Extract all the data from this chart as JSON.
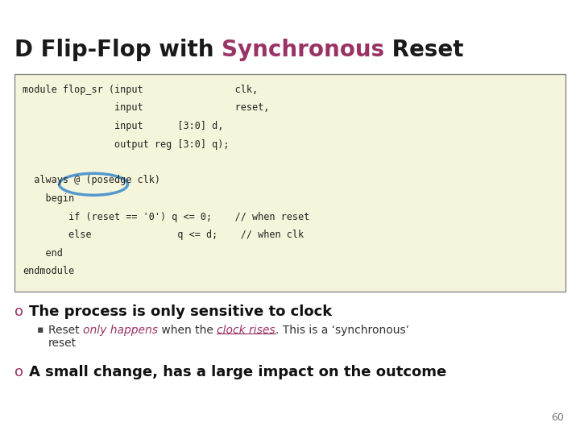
{
  "title_parts": [
    {
      "text": "D Flip-Flop with ",
      "color": "#1a1a1a",
      "bold": true
    },
    {
      "text": "Synchronous",
      "color": "#993366",
      "bold": true
    },
    {
      "text": " Reset",
      "color": "#1a1a1a",
      "bold": true
    }
  ],
  "code_box_bg": "#f5f5dc",
  "code_box_border": "#888888",
  "code_lines": [
    "module flop_sr (input                clk,",
    "                input                reset,",
    "                input      [3:0] d,",
    "                output reg [3:0] q);",
    "",
    "  always @ (posedge clk)",
    "    begin",
    "        if (reset == '0') q <= 0;    // when reset",
    "        else               q <= d;    // when clk",
    "    end",
    "endmodule"
  ],
  "ellipse_color": "#5599cc",
  "bullet_color": "#993366",
  "bg_color": "#ffffff",
  "title_fontsize": 20,
  "code_fontsize": 8.5,
  "bullet1_fontsize": 13,
  "bullet2_fontsize": 13,
  "sub_fontsize": 10,
  "page_number": "60"
}
